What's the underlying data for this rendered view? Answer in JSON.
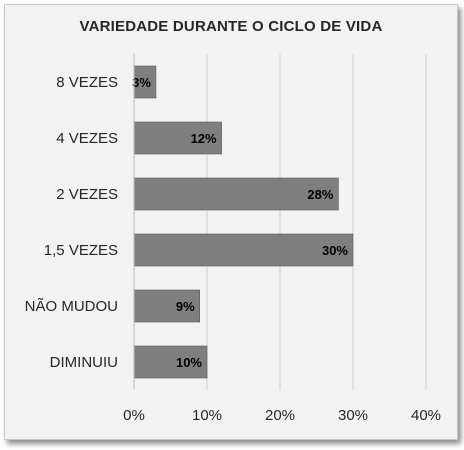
{
  "chart_data": {
    "type": "bar",
    "orientation": "horizontal",
    "title": "VARIEDADE DURANTE O CICLO DE VIDA",
    "categories": [
      "8 VEZES",
      "4 VEZES",
      "2 VEZES",
      "1,5 VEZES",
      "NÃO MUDOU",
      "DIMINUIU"
    ],
    "values": [
      3,
      12,
      28,
      30,
      9,
      10
    ],
    "data_labels": [
      "3%",
      "12%",
      "28%",
      "30%",
      "9%",
      "10%"
    ],
    "xticks": [
      "0%",
      "10%",
      "20%",
      "30%",
      "40%"
    ],
    "xlim": [
      0,
      40
    ],
    "xlabel": "",
    "ylabel": "",
    "grid": true,
    "bar_color": "#7f7f7f",
    "background_color": "#f2f2f2"
  }
}
